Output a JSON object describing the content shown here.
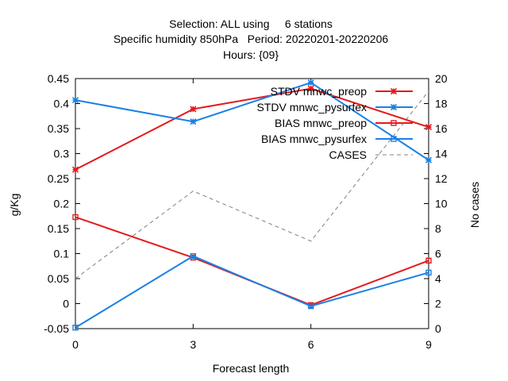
{
  "chart_data": {
    "type": "line",
    "title": [
      "Selection: ALL using     6 stations",
      "Specific humidity 850hPa   Period: 20220201-20220206",
      "Hours: {09}"
    ],
    "xlabel": "Forecast length",
    "ylabel": "g/Kg",
    "y2label": "No cases",
    "x": [
      0,
      3,
      6,
      9
    ],
    "xlim": [
      0,
      9
    ],
    "ylim": [
      -0.05,
      0.45
    ],
    "y2lim": [
      0,
      20
    ],
    "xticks": [
      "0",
      "3",
      "6",
      "9"
    ],
    "yticks": [
      "-0.05",
      "0",
      "0.05",
      "0.1",
      "0.15",
      "0.2",
      "0.25",
      "0.3",
      "0.35",
      "0.4",
      "0.45"
    ],
    "y2ticks": [
      "0",
      "2",
      "4",
      "6",
      "8",
      "10",
      "12",
      "14",
      "16",
      "18",
      "20"
    ],
    "grid": false,
    "legend_position": "top-right",
    "series": [
      {
        "name": "STDV mnwc_preop",
        "values": [
          0.268,
          0.389,
          0.43,
          0.353
        ],
        "color": "#e41a1c",
        "marker": "x",
        "axis": "y"
      },
      {
        "name": "STDV mnwc_pysurfex",
        "values": [
          0.407,
          0.364,
          0.442,
          0.287
        ],
        "color": "#1a80e6",
        "marker": "x",
        "axis": "y"
      },
      {
        "name": "BIAS mnwc_preop",
        "values": [
          0.173,
          0.092,
          -0.003,
          0.086
        ],
        "color": "#e41a1c",
        "marker": "square",
        "axis": "y"
      },
      {
        "name": "BIAS mnwc_pysurfex",
        "values": [
          -0.048,
          0.095,
          -0.005,
          0.062
        ],
        "color": "#1a80e6",
        "marker": "square",
        "axis": "y"
      },
      {
        "name": "CASES",
        "values": [
          4,
          11,
          7,
          19
        ],
        "color": "#808080",
        "marker": "none",
        "dashed": true,
        "axis": "y2"
      }
    ]
  }
}
